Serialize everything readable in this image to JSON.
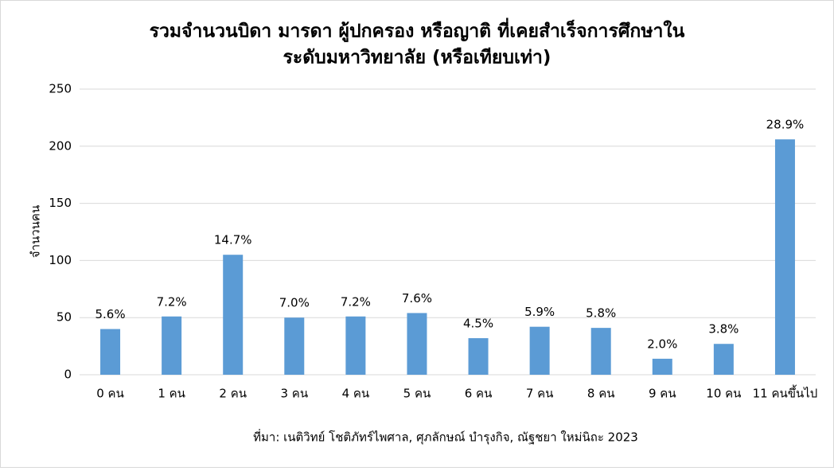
{
  "chart_data": {
    "type": "bar",
    "title": [
      "รวมจำนวนบิดา มารดา ผู้ปกครอง หรือญาติ ที่เคยสำเร็จการศึกษาใน",
      "ระดับมหาวิทยาลัย (หรือเทียบเท่า)"
    ],
    "y_label": "จำนวนคน",
    "source": "ที่มา: เนติวิทย์ โชติภัทร์ไพศาล, ศุภลักษณ์ บำรุงกิจ, ณัฐชยา ใหม่นิถะ 2023",
    "categories": [
      "0 คน",
      "1 คน",
      "2 คน",
      "3 คน",
      "4 คน",
      "5 คน",
      "6 คน",
      "7 คน",
      "8 คน",
      "9 คน",
      "10 คน",
      "11 คนขึ้นไป"
    ],
    "values": [
      40,
      51,
      105,
      50,
      51,
      54,
      32,
      42,
      41,
      14,
      27,
      206
    ],
    "value_labels": [
      "5.6%",
      "7.2%",
      "14.7%",
      "7.0%",
      "7.2%",
      "7.6%",
      "4.5%",
      "5.9%",
      "5.8%",
      "2.0%",
      "3.8%",
      "28.9%"
    ],
    "color": "#5b9bd5",
    "ylim": [
      0,
      250
    ],
    "yticks": [
      0,
      50,
      100,
      150,
      200,
      250
    ],
    "grid": true
  }
}
